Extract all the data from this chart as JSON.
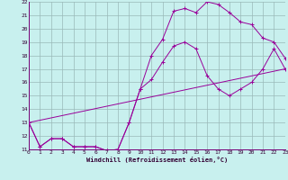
{
  "xlabel": "Windchill (Refroidissement éolien,°C)",
  "bg_color": "#c8f0ee",
  "line_color": "#990099",
  "grid_color": "#9ab8b8",
  "ylim": [
    11,
    22
  ],
  "xlim": [
    0,
    23
  ],
  "yticks": [
    11,
    12,
    13,
    14,
    15,
    16,
    17,
    18,
    19,
    20,
    21,
    22
  ],
  "xticks": [
    0,
    1,
    2,
    3,
    4,
    5,
    6,
    7,
    8,
    9,
    10,
    11,
    12,
    13,
    14,
    15,
    16,
    17,
    18,
    19,
    20,
    21,
    22,
    23
  ],
  "line1_x": [
    0,
    1,
    2,
    3,
    4,
    5,
    6,
    7,
    8,
    9,
    10,
    11,
    12,
    13,
    14,
    15,
    16,
    17,
    18,
    19,
    20,
    21,
    22,
    23
  ],
  "line1_y": [
    13.0,
    11.2,
    11.8,
    11.8,
    11.2,
    11.2,
    11.2,
    10.9,
    11.0,
    13.0,
    15.5,
    16.2,
    17.5,
    18.7,
    19.0,
    18.5,
    16.5,
    15.5,
    15.0,
    15.5,
    16.0,
    17.0,
    18.5,
    17.0
  ],
  "line2_x": [
    0,
    1,
    2,
    3,
    4,
    5,
    6,
    7,
    8,
    9,
    10,
    11,
    12,
    13,
    14,
    15,
    16,
    17,
    18,
    19,
    20,
    21,
    22,
    23
  ],
  "line2_y": [
    13.0,
    11.2,
    11.8,
    11.8,
    11.2,
    11.2,
    11.2,
    10.9,
    11.0,
    13.0,
    15.5,
    18.0,
    19.2,
    21.3,
    21.5,
    21.2,
    22.0,
    21.8,
    21.2,
    20.5,
    20.3,
    19.3,
    19.0,
    17.8
  ],
  "line3_x": [
    0,
    23
  ],
  "line3_y": [
    13.0,
    17.0
  ]
}
